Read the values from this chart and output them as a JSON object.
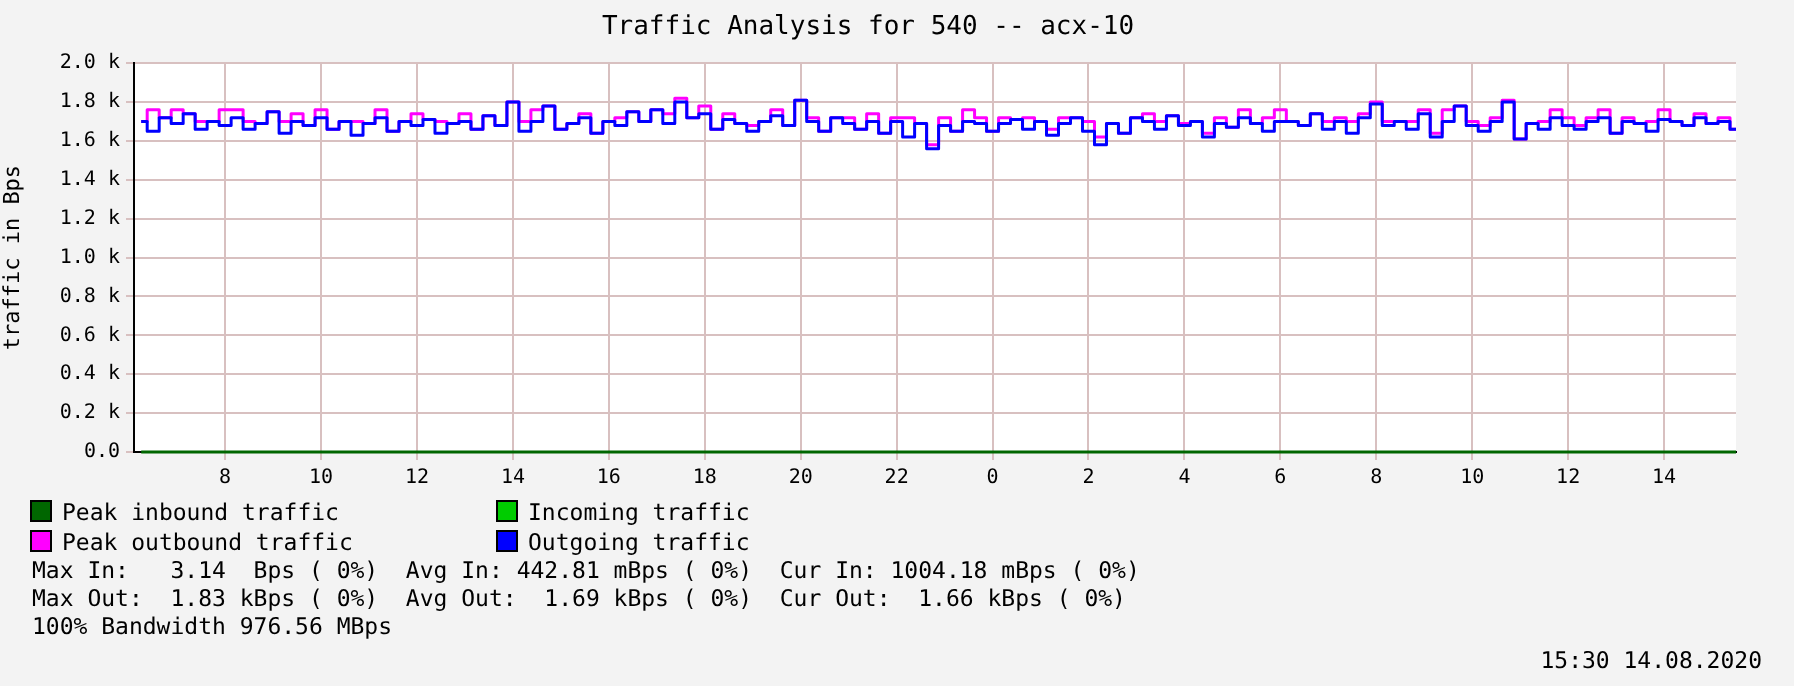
{
  "chart_data": {
    "type": "step",
    "title": "Traffic Analysis for 540 -- acx-10",
    "ylabel": "traffic in Bps",
    "x": [
      "2020-08-13T06:15",
      "2020-08-13T06:30",
      "2020-08-13T06:45",
      "2020-08-13T07:00",
      "2020-08-13T07:15",
      "2020-08-13T07:30",
      "2020-08-13T07:45",
      "2020-08-13T08:00",
      "2020-08-13T08:15",
      "2020-08-13T08:30",
      "2020-08-13T08:45",
      "2020-08-13T09:00",
      "2020-08-13T09:15",
      "2020-08-13T09:30",
      "2020-08-13T09:45",
      "2020-08-13T10:00",
      "2020-08-13T10:15",
      "2020-08-13T10:30",
      "2020-08-13T10:45",
      "2020-08-13T11:00",
      "2020-08-13T11:15",
      "2020-08-13T11:30",
      "2020-08-13T11:45",
      "2020-08-13T12:00",
      "2020-08-13T12:15",
      "2020-08-13T12:30",
      "2020-08-13T12:45",
      "2020-08-13T13:00",
      "2020-08-13T13:15",
      "2020-08-13T13:30",
      "2020-08-13T13:45",
      "2020-08-13T14:00",
      "2020-08-13T14:15",
      "2020-08-13T14:30",
      "2020-08-13T14:45",
      "2020-08-13T15:00",
      "2020-08-13T15:15",
      "2020-08-13T15:30",
      "2020-08-13T15:45",
      "2020-08-13T16:00",
      "2020-08-13T16:15",
      "2020-08-13T16:30",
      "2020-08-13T16:45",
      "2020-08-13T17:00",
      "2020-08-13T17:15",
      "2020-08-13T17:30",
      "2020-08-13T17:45",
      "2020-08-13T18:00",
      "2020-08-13T18:15",
      "2020-08-13T18:30",
      "2020-08-13T18:45",
      "2020-08-13T19:00",
      "2020-08-13T19:15",
      "2020-08-13T19:30",
      "2020-08-13T19:45",
      "2020-08-13T20:00",
      "2020-08-13T20:15",
      "2020-08-13T20:30",
      "2020-08-13T20:45",
      "2020-08-13T21:00",
      "2020-08-13T21:15",
      "2020-08-13T21:30",
      "2020-08-13T21:45",
      "2020-08-13T22:00",
      "2020-08-13T22:15",
      "2020-08-13T22:30",
      "2020-08-13T22:45",
      "2020-08-13T23:00",
      "2020-08-13T23:15",
      "2020-08-13T23:30",
      "2020-08-13T23:45",
      "2020-08-14T00:00",
      "2020-08-14T00:15",
      "2020-08-14T00:30",
      "2020-08-14T00:45",
      "2020-08-14T01:00",
      "2020-08-14T01:15",
      "2020-08-14T01:30",
      "2020-08-14T01:45",
      "2020-08-14T02:00",
      "2020-08-14T02:15",
      "2020-08-14T02:30",
      "2020-08-14T02:45",
      "2020-08-14T03:00",
      "2020-08-14T03:15",
      "2020-08-14T03:30",
      "2020-08-14T03:45",
      "2020-08-14T04:00",
      "2020-08-14T04:15",
      "2020-08-14T04:30",
      "2020-08-14T04:45",
      "2020-08-14T05:00",
      "2020-08-14T05:15",
      "2020-08-14T05:30",
      "2020-08-14T05:45",
      "2020-08-14T06:00",
      "2020-08-14T06:15",
      "2020-08-14T06:30",
      "2020-08-14T06:45",
      "2020-08-14T07:00",
      "2020-08-14T07:15",
      "2020-08-14T07:30",
      "2020-08-14T07:45",
      "2020-08-14T08:00",
      "2020-08-14T08:15",
      "2020-08-14T08:30",
      "2020-08-14T08:45",
      "2020-08-14T09:00",
      "2020-08-14T09:15",
      "2020-08-14T09:30",
      "2020-08-14T09:45",
      "2020-08-14T10:00",
      "2020-08-14T10:15",
      "2020-08-14T10:30",
      "2020-08-14T10:45",
      "2020-08-14T11:00",
      "2020-08-14T11:15",
      "2020-08-14T11:30",
      "2020-08-14T11:45",
      "2020-08-14T12:00",
      "2020-08-14T12:15",
      "2020-08-14T12:30",
      "2020-08-14T12:45",
      "2020-08-14T13:00",
      "2020-08-14T13:15",
      "2020-08-14T13:30",
      "2020-08-14T13:45",
      "2020-08-14T14:00",
      "2020-08-14T14:15",
      "2020-08-14T14:30",
      "2020-08-14T14:45",
      "2020-08-14T15:00",
      "2020-08-14T15:15",
      "2020-08-14T15:30"
    ],
    "series": [
      {
        "name": "Peak inbound traffic",
        "color": "#006600",
        "x": [
          "2020-08-13T06:15",
          "2020-08-14T15:30"
        ],
        "values": [
          0,
          0
        ]
      },
      {
        "name": "Incoming traffic",
        "color": "#00cc00",
        "values": [
          null,
          null,
          null,
          null,
          null,
          null,
          null,
          null,
          null,
          null,
          null,
          null,
          null,
          null,
          null,
          null,
          null,
          null,
          null,
          null,
          null,
          null,
          null,
          null,
          null,
          null,
          null,
          null,
          null,
          null,
          null,
          null,
          null,
          null,
          null,
          null,
          null,
          null,
          null,
          null,
          null,
          null,
          null,
          null,
          null,
          null,
          null,
          null,
          null,
          null,
          null,
          null,
          null,
          null,
          null,
          null,
          null,
          null,
          null,
          null,
          null,
          null,
          null,
          null,
          null,
          null,
          null,
          null,
          null,
          null,
          null,
          null,
          null,
          null,
          null,
          null,
          null,
          null,
          null,
          null,
          null,
          null,
          null,
          null,
          null,
          null,
          null,
          null,
          null,
          null,
          null,
          null,
          null,
          null,
          null,
          null,
          null,
          null,
          null,
          null,
          null,
          null,
          null,
          null,
          null,
          null,
          null,
          null,
          null,
          null,
          null,
          null,
          null,
          null,
          null,
          null,
          null,
          null,
          null,
          null,
          null,
          null,
          null,
          null,
          null,
          null,
          null,
          null,
          null,
          null,
          null,
          null,
          null,
          null
        ]
      },
      {
        "name": "Peak outbound traffic",
        "color": "#ff00ff",
        "values": [
          1700,
          1760,
          1720,
          1760,
          1740,
          1700,
          1700,
          1760,
          1760,
          1700,
          1690,
          1750,
          1700,
          1740,
          1680,
          1760,
          1660,
          1700,
          1700,
          1690,
          1760,
          1650,
          1700,
          1740,
          1710,
          1700,
          1690,
          1740,
          1660,
          1730,
          1680,
          1800,
          1700,
          1760,
          1780,
          1660,
          1690,
          1740,
          1640,
          1700,
          1720,
          1750,
          1700,
          1760,
          1740,
          1820,
          1720,
          1780,
          1660,
          1740,
          1690,
          1680,
          1700,
          1760,
          1680,
          1810,
          1720,
          1650,
          1720,
          1720,
          1660,
          1740,
          1640,
          1720,
          1720,
          1690,
          1580,
          1720,
          1650,
          1760,
          1720,
          1650,
          1720,
          1710,
          1720,
          1700,
          1660,
          1720,
          1720,
          1700,
          1620,
          1690,
          1640,
          1720,
          1740,
          1700,
          1730,
          1690,
          1700,
          1640,
          1720,
          1670,
          1760,
          1690,
          1720,
          1760,
          1700,
          1680,
          1740,
          1700,
          1720,
          1700,
          1740,
          1800,
          1700,
          1700,
          1700,
          1760,
          1640,
          1760,
          1780,
          1700,
          1680,
          1720,
          1810,
          1610,
          1690,
          1700,
          1760,
          1720,
          1680,
          1720,
          1760,
          1640,
          1720,
          1690,
          1700,
          1760,
          1700,
          1680,
          1740,
          1690,
          1720,
          1660
        ]
      },
      {
        "name": "Outgoing traffic",
        "color": "#0000ff",
        "values": [
          1700,
          1650,
          1720,
          1690,
          1740,
          1660,
          1700,
          1680,
          1720,
          1660,
          1690,
          1750,
          1640,
          1700,
          1680,
          1720,
          1660,
          1700,
          1630,
          1690,
          1720,
          1650,
          1700,
          1680,
          1710,
          1640,
          1690,
          1700,
          1660,
          1730,
          1680,
          1800,
          1650,
          1700,
          1780,
          1660,
          1690,
          1720,
          1640,
          1700,
          1680,
          1750,
          1700,
          1760,
          1690,
          1800,
          1720,
          1740,
          1660,
          1710,
          1690,
          1650,
          1700,
          1730,
          1680,
          1810,
          1700,
          1650,
          1720,
          1690,
          1660,
          1700,
          1640,
          1700,
          1620,
          1690,
          1560,
          1680,
          1650,
          1700,
          1690,
          1650,
          1690,
          1710,
          1660,
          1700,
          1630,
          1690,
          1720,
          1650,
          1580,
          1690,
          1640,
          1720,
          1700,
          1660,
          1730,
          1680,
          1700,
          1620,
          1690,
          1670,
          1720,
          1690,
          1650,
          1700,
          1700,
          1680,
          1740,
          1660,
          1700,
          1640,
          1720,
          1790,
          1680,
          1700,
          1660,
          1740,
          1620,
          1700,
          1780,
          1680,
          1650,
          1700,
          1800,
          1610,
          1690,
          1660,
          1720,
          1680,
          1660,
          1700,
          1720,
          1640,
          1700,
          1690,
          1650,
          1710,
          1700,
          1680,
          1720,
          1690,
          1700,
          1660
        ]
      }
    ],
    "xlim": [
      "2020-08-13T06:06",
      "2020-08-14T15:30"
    ],
    "xticks": [
      {
        "value": "2020-08-13T08:00",
        "label": "8"
      },
      {
        "value": "2020-08-13T10:00",
        "label": "10"
      },
      {
        "value": "2020-08-13T12:00",
        "label": "12"
      },
      {
        "value": "2020-08-13T14:00",
        "label": "14"
      },
      {
        "value": "2020-08-13T16:00",
        "label": "16"
      },
      {
        "value": "2020-08-13T18:00",
        "label": "18"
      },
      {
        "value": "2020-08-13T20:00",
        "label": "20"
      },
      {
        "value": "2020-08-13T22:00",
        "label": "22"
      },
      {
        "value": "2020-08-14T00:00",
        "label": "0"
      },
      {
        "value": "2020-08-14T02:00",
        "label": "2"
      },
      {
        "value": "2020-08-14T04:00",
        "label": "4"
      },
      {
        "value": "2020-08-14T06:00",
        "label": "6"
      },
      {
        "value": "2020-08-14T08:00",
        "label": "8"
      },
      {
        "value": "2020-08-14T10:00",
        "label": "10"
      },
      {
        "value": "2020-08-14T12:00",
        "label": "12"
      },
      {
        "value": "2020-08-14T14:00",
        "label": "14"
      }
    ],
    "ylim": [
      0,
      2000
    ],
    "yticks": [
      {
        "value": 0,
        "label": "0.0"
      },
      {
        "value": 200,
        "label": "0.2 k"
      },
      {
        "value": 400,
        "label": "0.4 k"
      },
      {
        "value": 600,
        "label": "0.6 k"
      },
      {
        "value": 800,
        "label": "0.8 k"
      },
      {
        "value": 1000,
        "label": "1.0 k"
      },
      {
        "value": 1200,
        "label": "1.2 k"
      },
      {
        "value": 1400,
        "label": "1.4 k"
      },
      {
        "value": 1600,
        "label": "1.6 k"
      },
      {
        "value": 1800,
        "label": "1.8 k"
      },
      {
        "value": 2000,
        "label": "2.0 k"
      }
    ],
    "grid": true,
    "legend": "bottom left",
    "marker": "none",
    "line_style": "solid",
    "annotations": [
      "Max In:   3.14  Bps ( 0%)  Avg In: 442.81 mBps ( 0%)  Cur In: 1004.18 mBps ( 0%)",
      "Max Out:  1.83 kBps ( 0%)  Avg Out:  1.69 kBps ( 0%)  Cur Out:  1.66 kBps ( 0%)",
      "100% Bandwidth 976.56 MBps",
      "15:30 14.08.2020"
    ]
  }
}
